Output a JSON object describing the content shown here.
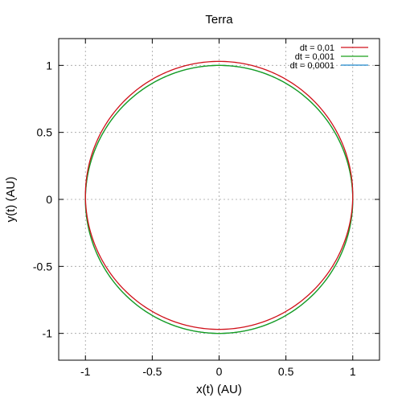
{
  "chart_data": {
    "type": "line",
    "title": "Terra",
    "xlabel": "x(t) (AU)",
    "ylabel": "y(t) (AU)",
    "xlim": [
      -1.2,
      1.2
    ],
    "ylim": [
      -1.2,
      1.2
    ],
    "x_ticks": [
      -1,
      -0.5,
      0,
      0.5,
      1
    ],
    "x_tick_labels": [
      "-1",
      "-0.5",
      "0",
      "0.5",
      "1"
    ],
    "y_ticks": [
      -1,
      -0.5,
      0,
      0.5,
      1
    ],
    "y_tick_labels": [
      "-1",
      "-0.5",
      "0",
      "0.5",
      "1"
    ],
    "grid": true,
    "legend_position": "top-right",
    "series": [
      {
        "name": "dt = 0,01",
        "color": "#d0101a",
        "shape": "closed orbit",
        "x_extent": [
          -1.0,
          1.0
        ],
        "y_extent": [
          -0.97,
          1.03
        ],
        "passes_through": [
          [
            1.0,
            0.0
          ],
          [
            0.0,
            1.03
          ],
          [
            -1.0,
            0.0
          ],
          [
            0.0,
            -0.97
          ]
        ]
      },
      {
        "name": "dt = 0,001",
        "color": "#1aa01a",
        "shape": "closed orbit",
        "x_extent": [
          -1.0,
          1.0
        ],
        "y_extent": [
          -1.0,
          1.0
        ],
        "passes_through": [
          [
            1.0,
            0.0
          ],
          [
            0.0,
            1.0
          ],
          [
            -1.0,
            0.0
          ],
          [
            0.0,
            -1.0
          ]
        ]
      },
      {
        "name": "dt = 0,0001",
        "color": "#1e88cc",
        "shape": "closed orbit",
        "x_extent": [
          -1.0,
          1.0
        ],
        "y_extent": [
          -1.0,
          1.0
        ],
        "passes_through": [
          [
            1.0,
            0.0
          ],
          [
            0.0,
            1.0
          ],
          [
            -1.0,
            0.0
          ],
          [
            0.0,
            -1.0
          ]
        ]
      }
    ]
  }
}
